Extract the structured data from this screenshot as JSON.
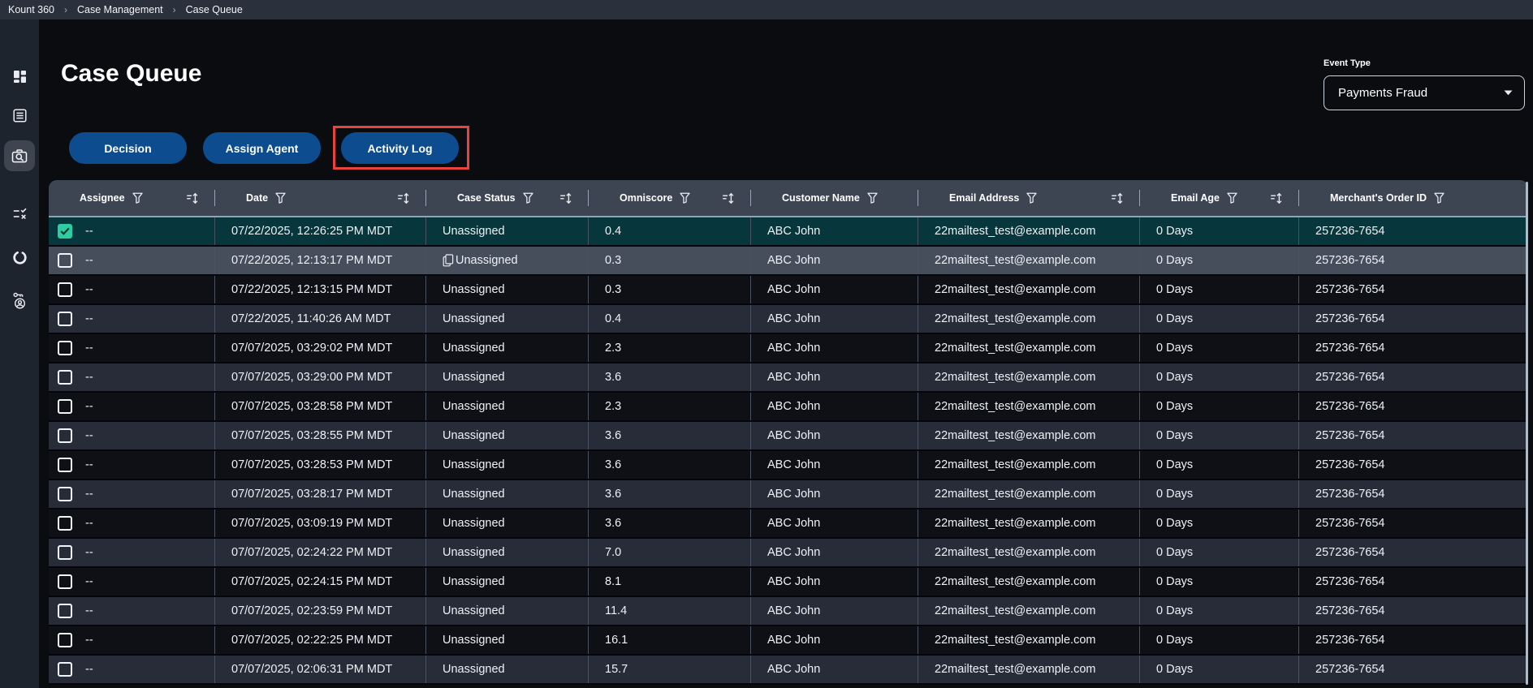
{
  "breadcrumb": {
    "separator": "›",
    "items": [
      "Kount 360",
      "Case Management",
      "Case Queue"
    ]
  },
  "sidebar": {
    "items": [
      {
        "icon": "dashboard-icon",
        "active": false
      },
      {
        "icon": "reports-icon",
        "active": false
      },
      {
        "icon": "case-search-icon",
        "active": true
      },
      {
        "icon": "rules-icon",
        "active": false
      },
      {
        "icon": "progress-circle-icon",
        "active": false
      },
      {
        "icon": "agent-access-icon",
        "active": false
      }
    ]
  },
  "page": {
    "title": "Case Queue"
  },
  "toolbar": {
    "buttons": [
      {
        "label": "Decision",
        "highlighted": false
      },
      {
        "label": "Assign Agent",
        "highlighted": false
      },
      {
        "label": "Activity Log",
        "highlighted": true
      }
    ]
  },
  "filters": {
    "event_type": {
      "label": "Event Type",
      "value": "Payments Fraud",
      "icon": "chevron-down-icon"
    }
  },
  "colors": {
    "accent_blue": "#0c4c8f",
    "highlight_red": "#e8443f",
    "selected_row": "#07363c",
    "checkbox_checked": "#2fcba3",
    "header_bg": "#3d4452"
  },
  "table": {
    "columns": [
      {
        "label": "Assignee",
        "filter": true,
        "sort": true
      },
      {
        "label": "Date",
        "filter": true,
        "sort": true
      },
      {
        "label": "Case Status",
        "filter": true,
        "sort": true
      },
      {
        "label": "Omniscore",
        "filter": true,
        "sort": true
      },
      {
        "label": "Customer Name",
        "filter": true,
        "sort": false
      },
      {
        "label": "Email Address",
        "filter": true,
        "sort": true
      },
      {
        "label": "Email Age",
        "filter": true,
        "sort": true
      },
      {
        "label": "Merchant's Order ID",
        "filter": true,
        "sort": false
      }
    ],
    "rows": [
      {
        "checked": true,
        "selected": true,
        "hover": false,
        "assignee": "--",
        "date": "07/22/2025, 12:26:25 PM MDT",
        "status": "Unassigned",
        "status_copy_icon": false,
        "omniscore": "0.4",
        "customer": "ABC John",
        "email": "22mailtest_test@example.com",
        "email_age": "0 Days",
        "order_id": "257236-7654"
      },
      {
        "checked": false,
        "selected": false,
        "hover": true,
        "assignee": "--",
        "date": "07/22/2025, 12:13:17 PM MDT",
        "status": "Unassigned",
        "status_copy_icon": true,
        "omniscore": "0.3",
        "customer": "ABC John",
        "email": "22mailtest_test@example.com",
        "email_age": "0 Days",
        "order_id": "257236-7654"
      },
      {
        "checked": false,
        "selected": false,
        "hover": false,
        "assignee": "--",
        "date": "07/22/2025, 12:13:15 PM MDT",
        "status": "Unassigned",
        "status_copy_icon": false,
        "omniscore": "0.3",
        "customer": "ABC John",
        "email": "22mailtest_test@example.com",
        "email_age": "0 Days",
        "order_id": "257236-7654"
      },
      {
        "checked": false,
        "selected": false,
        "hover": false,
        "assignee": "--",
        "date": "07/22/2025, 11:40:26 AM MDT",
        "status": "Unassigned",
        "status_copy_icon": false,
        "omniscore": "0.4",
        "customer": "ABC John",
        "email": "22mailtest_test@example.com",
        "email_age": "0 Days",
        "order_id": "257236-7654"
      },
      {
        "checked": false,
        "selected": false,
        "hover": false,
        "assignee": "--",
        "date": "07/07/2025, 03:29:02 PM MDT",
        "status": "Unassigned",
        "status_copy_icon": false,
        "omniscore": "2.3",
        "customer": "ABC John",
        "email": "22mailtest_test@example.com",
        "email_age": "0 Days",
        "order_id": "257236-7654"
      },
      {
        "checked": false,
        "selected": false,
        "hover": false,
        "assignee": "--",
        "date": "07/07/2025, 03:29:00 PM MDT",
        "status": "Unassigned",
        "status_copy_icon": false,
        "omniscore": "3.6",
        "customer": "ABC John",
        "email": "22mailtest_test@example.com",
        "email_age": "0 Days",
        "order_id": "257236-7654"
      },
      {
        "checked": false,
        "selected": false,
        "hover": false,
        "assignee": "--",
        "date": "07/07/2025, 03:28:58 PM MDT",
        "status": "Unassigned",
        "status_copy_icon": false,
        "omniscore": "2.3",
        "customer": "ABC John",
        "email": "22mailtest_test@example.com",
        "email_age": "0 Days",
        "order_id": "257236-7654"
      },
      {
        "checked": false,
        "selected": false,
        "hover": false,
        "assignee": "--",
        "date": "07/07/2025, 03:28:55 PM MDT",
        "status": "Unassigned",
        "status_copy_icon": false,
        "omniscore": "3.6",
        "customer": "ABC John",
        "email": "22mailtest_test@example.com",
        "email_age": "0 Days",
        "order_id": "257236-7654"
      },
      {
        "checked": false,
        "selected": false,
        "hover": false,
        "assignee": "--",
        "date": "07/07/2025, 03:28:53 PM MDT",
        "status": "Unassigned",
        "status_copy_icon": false,
        "omniscore": "3.6",
        "customer": "ABC John",
        "email": "22mailtest_test@example.com",
        "email_age": "0 Days",
        "order_id": "257236-7654"
      },
      {
        "checked": false,
        "selected": false,
        "hover": false,
        "assignee": "--",
        "date": "07/07/2025, 03:28:17 PM MDT",
        "status": "Unassigned",
        "status_copy_icon": false,
        "omniscore": "3.6",
        "customer": "ABC John",
        "email": "22mailtest_test@example.com",
        "email_age": "0 Days",
        "order_id": "257236-7654"
      },
      {
        "checked": false,
        "selected": false,
        "hover": false,
        "assignee": "--",
        "date": "07/07/2025, 03:09:19 PM MDT",
        "status": "Unassigned",
        "status_copy_icon": false,
        "omniscore": "3.6",
        "customer": "ABC John",
        "email": "22mailtest_test@example.com",
        "email_age": "0 Days",
        "order_id": "257236-7654"
      },
      {
        "checked": false,
        "selected": false,
        "hover": false,
        "assignee": "--",
        "date": "07/07/2025, 02:24:22 PM MDT",
        "status": "Unassigned",
        "status_copy_icon": false,
        "omniscore": "7.0",
        "customer": "ABC John",
        "email": "22mailtest_test@example.com",
        "email_age": "0 Days",
        "order_id": "257236-7654"
      },
      {
        "checked": false,
        "selected": false,
        "hover": false,
        "assignee": "--",
        "date": "07/07/2025, 02:24:15 PM MDT",
        "status": "Unassigned",
        "status_copy_icon": false,
        "omniscore": "8.1",
        "customer": "ABC John",
        "email": "22mailtest_test@example.com",
        "email_age": "0 Days",
        "order_id": "257236-7654"
      },
      {
        "checked": false,
        "selected": false,
        "hover": false,
        "assignee": "--",
        "date": "07/07/2025, 02:23:59 PM MDT",
        "status": "Unassigned",
        "status_copy_icon": false,
        "omniscore": "11.4",
        "customer": "ABC John",
        "email": "22mailtest_test@example.com",
        "email_age": "0 Days",
        "order_id": "257236-7654"
      },
      {
        "checked": false,
        "selected": false,
        "hover": false,
        "assignee": "--",
        "date": "07/07/2025, 02:22:25 PM MDT",
        "status": "Unassigned",
        "status_copy_icon": false,
        "omniscore": "16.1",
        "customer": "ABC John",
        "email": "22mailtest_test@example.com",
        "email_age": "0 Days",
        "order_id": "257236-7654"
      },
      {
        "checked": false,
        "selected": false,
        "hover": false,
        "assignee": "--",
        "date": "07/07/2025, 02:06:31 PM MDT",
        "status": "Unassigned",
        "status_copy_icon": false,
        "omniscore": "15.7",
        "customer": "ABC John",
        "email": "22mailtest_test@example.com",
        "email_age": "0 Days",
        "order_id": "257236-7654"
      }
    ]
  }
}
